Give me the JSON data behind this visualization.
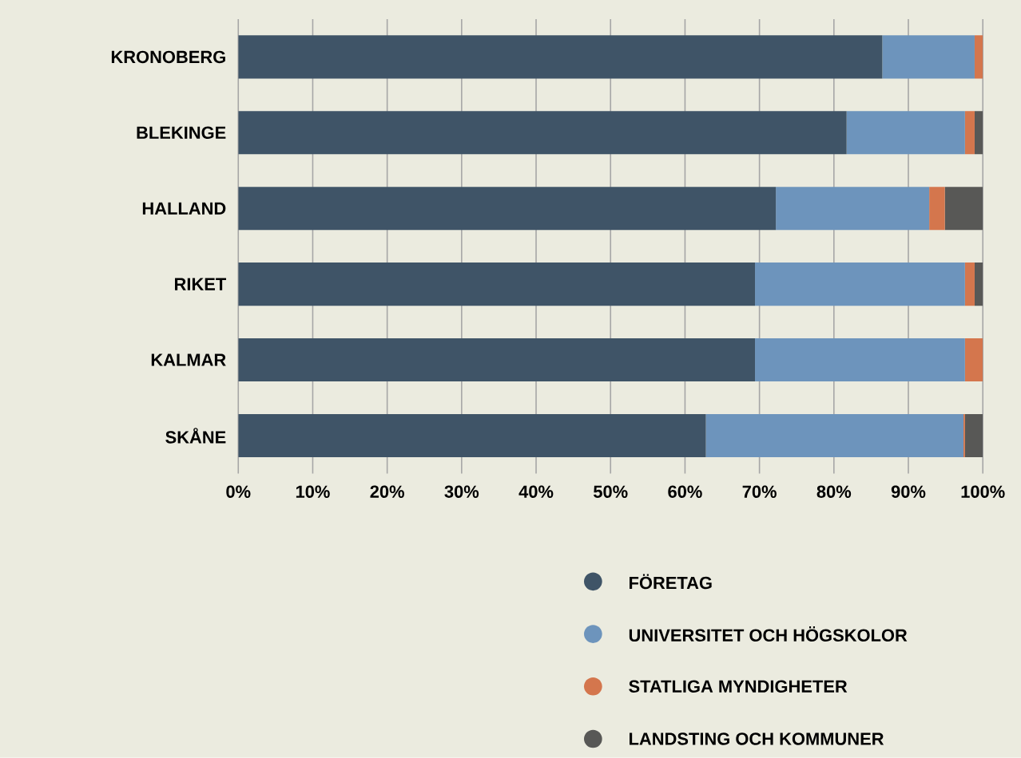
{
  "chart_data": {
    "type": "bar",
    "orientation": "horizontal",
    "stacked": true,
    "grid": "x",
    "legend": "bottom",
    "categories": [
      "KRONOBERG",
      "BLEKINGE",
      "HALLAND",
      "RIKET",
      "KALMAR",
      "SKÅNE"
    ],
    "xlim": [
      0,
      100
    ],
    "xticks": [
      {
        "value": 0,
        "label": "0%"
      },
      {
        "value": 10,
        "label": "10%"
      },
      {
        "value": 20,
        "label": "20%"
      },
      {
        "value": 30,
        "label": "30%"
      },
      {
        "value": 40,
        "label": "40%"
      },
      {
        "value": 50,
        "label": "50%"
      },
      {
        "value": 60,
        "label": "60%"
      },
      {
        "value": 70,
        "label": "70%"
      },
      {
        "value": 80,
        "label": "80%"
      },
      {
        "value": 90,
        "label": "90%"
      },
      {
        "value": 100,
        "label": "100%"
      }
    ],
    "series": [
      {
        "name": "FÖRETAG",
        "color": "#3f5467",
        "values": [
          86.5,
          81.7,
          72.2,
          69.4,
          69.4,
          62.8
        ]
      },
      {
        "name": "UNIVERSITET OCH HÖGSKOLOR",
        "color": "#6d94bc",
        "values": [
          12.4,
          15.9,
          20.6,
          28.2,
          28.2,
          34.6
        ]
      },
      {
        "name": "STATLIGA MYNDIGHETER",
        "color": "#d4764d",
        "values": [
          1.1,
          1.3,
          2.1,
          1.3,
          2.4,
          0.2
        ]
      },
      {
        "name": "LANDSTING OCH KOMMUNER",
        "color": "#585856",
        "values": [
          0,
          1.1,
          5.1,
          1.1,
          0,
          2.4
        ]
      }
    ]
  }
}
